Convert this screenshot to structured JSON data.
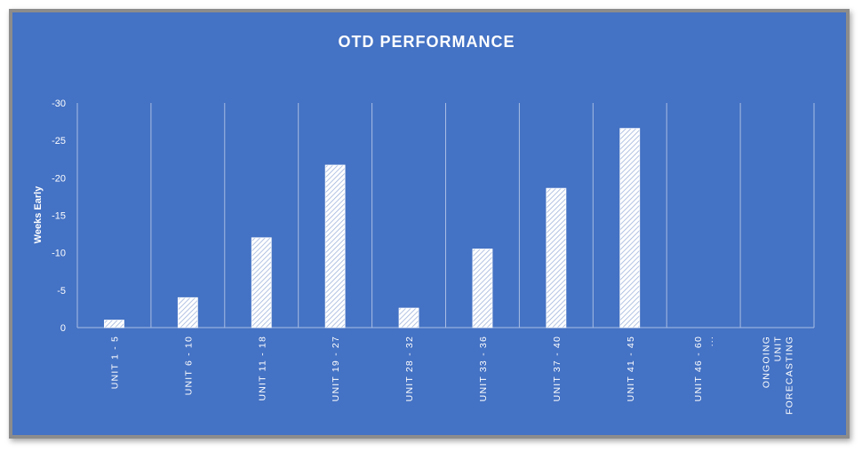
{
  "chart_data": {
    "type": "bar",
    "title": "OTD PERFORMANCE",
    "ylabel": "Weeks Early",
    "xlabel": "",
    "y_axis_reversed": true,
    "ylim": [
      0,
      -30
    ],
    "yticks": [
      0,
      -5,
      -10,
      -15,
      -20,
      -25,
      -30
    ],
    "ytick_labels": [
      "0",
      "-5",
      "-10",
      "-15",
      "-20",
      "-25",
      "-30"
    ],
    "grid": "vertical",
    "legend": "none",
    "categories": [
      "UNIT 1 - 5",
      "UNIT 6 - 10",
      "UNIT 11 - 18",
      "UNIT 19 - 27",
      "UNIT 28 - 32",
      "UNIT 33 - 36",
      "UNIT 37 - 40",
      "UNIT 41 - 45",
      "UNIT 46 - 60 ...",
      "ONGOING UNIT FORECASTING"
    ],
    "category_label_lines": [
      [
        "UNIT 1 - 5"
      ],
      [
        "UNIT 6 - 10"
      ],
      [
        "UNIT 11 - 18"
      ],
      [
        "UNIT 19 - 27"
      ],
      [
        "UNIT 28 - 32"
      ],
      [
        "UNIT 33 - 36"
      ],
      [
        "UNIT 37 - 40"
      ],
      [
        "UNIT 41 - 45"
      ],
      [
        "UNIT 46 - 60",
        "..."
      ],
      [
        "ONGOING",
        "UNIT",
        "FORECASTING"
      ]
    ],
    "values": [
      -1,
      -4,
      -12,
      -21.7,
      -2.6,
      -10.5,
      -18.6,
      -26.6,
      null,
      null
    ],
    "colors": {
      "background": "#4472c4",
      "text": "#ffffff",
      "bar_fill": "#ffffff",
      "bar_hatch": "#9fb4dc",
      "grid": "#a9bde3"
    }
  }
}
